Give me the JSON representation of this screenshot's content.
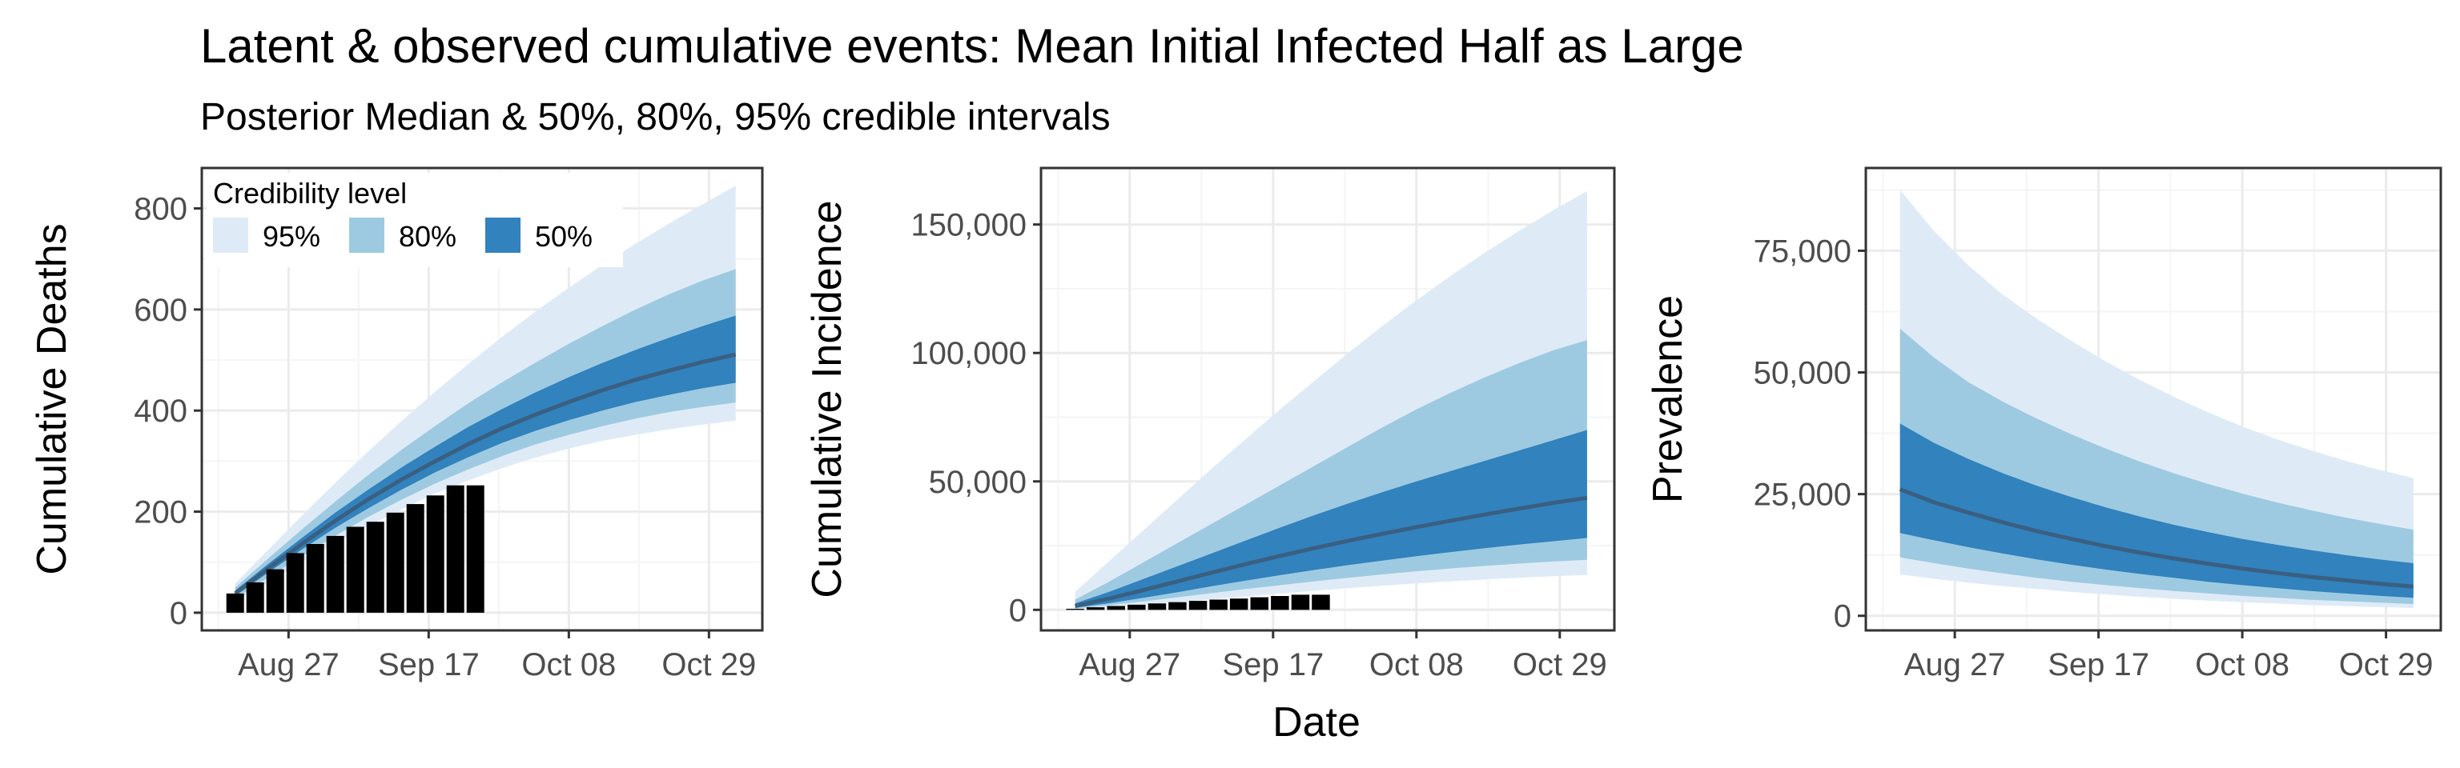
{
  "title": "Latent & observed cumulative events: Mean Initial Infected Half as Large",
  "subtitle": "Posterior Median & 50%, 80%, 95% credible intervals",
  "xlabel": "Date",
  "colors": {
    "band95": "#deebf7",
    "band80": "#9ecae1",
    "band50": "#3182bd",
    "median": "#3a5f80",
    "bars": "#000000",
    "grid_major": "#ebebeb",
    "grid_minor": "#f5f5f5",
    "panel_border": "#333333"
  },
  "legend": {
    "title": "Credibility level",
    "items": [
      {
        "label": "95%",
        "color": "#deebf7"
      },
      {
        "label": "80%",
        "color": "#9ecae1"
      },
      {
        "label": "50%",
        "color": "#3182bd"
      }
    ]
  },
  "chart_data": [
    {
      "type": "area",
      "ylabel": "Cumulative Deaths",
      "x_ticks": [
        "Aug 27",
        "Sep 17",
        "Oct 08",
        "Oct 29"
      ],
      "xlim": [
        "2020-08-14",
        "2020-11-06"
      ],
      "y_ticks": [
        "0",
        "200",
        "400",
        "600",
        "800"
      ],
      "y_tick_values": [
        0,
        200,
        400,
        600,
        800
      ],
      "ylim": [
        -35,
        880
      ],
      "dates": [
        "2020-08-19",
        "2020-08-24",
        "2020-08-29",
        "2020-09-03",
        "2020-09-08",
        "2020-09-13",
        "2020-09-18",
        "2020-09-23",
        "2020-09-28",
        "2020-10-03",
        "2020-10-08",
        "2020-10-13",
        "2020-10-18",
        "2020-10-23",
        "2020-10-28",
        "2020-11-02"
      ],
      "lo95": [
        22,
        60,
        100,
        138,
        172,
        205,
        236,
        262,
        286,
        307,
        325,
        340,
        352,
        363,
        372,
        380
      ],
      "lo80": [
        28,
        70,
        112,
        152,
        190,
        224,
        256,
        284,
        310,
        333,
        352,
        369,
        384,
        397,
        407,
        416
      ],
      "lo50": [
        33,
        80,
        125,
        168,
        207,
        244,
        278,
        308,
        336,
        360,
        381,
        400,
        417,
        431,
        444,
        455
      ],
      "median": [
        38,
        88,
        136,
        182,
        225,
        264,
        300,
        334,
        365,
        392,
        417,
        440,
        461,
        479,
        496,
        511
      ],
      "hi50": [
        44,
        97,
        148,
        198,
        244,
        288,
        329,
        368,
        403,
        436,
        466,
        494,
        520,
        544,
        567,
        588
      ],
      "hi80": [
        50,
        108,
        165,
        220,
        273,
        323,
        370,
        415,
        456,
        495,
        532,
        567,
        600,
        630,
        657,
        680
      ],
      "hi95": [
        58,
        125,
        192,
        257,
        320,
        380,
        438,
        493,
        546,
        596,
        643,
        688,
        730,
        770,
        808,
        845
      ],
      "bar_dates": [
        "2020-08-19",
        "2020-08-22",
        "2020-08-25",
        "2020-08-28",
        "2020-08-31",
        "2020-09-03",
        "2020-09-06",
        "2020-09-09",
        "2020-09-12",
        "2020-09-15",
        "2020-09-18",
        "2020-09-21",
        "2020-09-24"
      ],
      "bar_values": [
        38,
        60,
        86,
        118,
        136,
        152,
        170,
        180,
        198,
        215,
        232,
        252,
        252
      ]
    },
    {
      "type": "area",
      "ylabel": "Cumulative Incidence",
      "x_ticks": [
        "Aug 27",
        "Sep 17",
        "Oct 08",
        "Oct 29"
      ],
      "xlim": [
        "2020-08-14",
        "2020-11-06"
      ],
      "y_ticks": [
        "0",
        "50,000",
        "100,000",
        "150,000"
      ],
      "y_tick_values": [
        0,
        50000,
        100000,
        150000
      ],
      "ylim": [
        -8000,
        172000
      ],
      "dates": [
        "2020-08-19",
        "2020-08-24",
        "2020-08-29",
        "2020-09-03",
        "2020-09-08",
        "2020-09-13",
        "2020-09-18",
        "2020-09-23",
        "2020-09-28",
        "2020-10-03",
        "2020-10-08",
        "2020-10-13",
        "2020-10-18",
        "2020-10-23",
        "2020-10-28",
        "2020-11-02"
      ],
      "lo95": [
        300,
        1100,
        2000,
        3000,
        4100,
        5200,
        6300,
        7400,
        8400,
        9400,
        10300,
        11100,
        11800,
        12500,
        13100,
        13600
      ],
      "lo80": [
        500,
        1800,
        3300,
        4900,
        6500,
        8100,
        9600,
        11100,
        12500,
        13800,
        15000,
        16100,
        17100,
        18000,
        18800,
        19500
      ],
      "lo50": [
        800,
        2600,
        4700,
        6900,
        9200,
        11400,
        13500,
        15500,
        17400,
        19200,
        20900,
        22500,
        24000,
        25400,
        26700,
        28000
      ],
      "median": [
        1500,
        4400,
        7700,
        11100,
        14500,
        17800,
        21000,
        24000,
        26900,
        29600,
        32200,
        34700,
        37100,
        39400,
        41600,
        43600
      ],
      "hi50": [
        2500,
        7000,
        12000,
        17000,
        22000,
        27000,
        32000,
        36800,
        41400,
        45800,
        50000,
        54000,
        58000,
        62000,
        66000,
        70000
      ],
      "hi80": [
        4000,
        11000,
        18500,
        26000,
        33500,
        41000,
        48500,
        56000,
        63500,
        71000,
        78000,
        84500,
        90500,
        96000,
        101000,
        105000
      ],
      "hi95": [
        7000,
        19000,
        31000,
        43000,
        55000,
        66500,
        78000,
        89000,
        100000,
        110500,
        120500,
        130000,
        139000,
        147500,
        155500,
        163000
      ],
      "bar_dates": [
        "2020-08-19",
        "2020-08-22",
        "2020-08-25",
        "2020-08-28",
        "2020-08-31",
        "2020-09-03",
        "2020-09-06",
        "2020-09-09",
        "2020-09-12",
        "2020-09-15",
        "2020-09-18",
        "2020-09-21",
        "2020-09-24"
      ],
      "bar_values": [
        400,
        1000,
        1500,
        2000,
        2500,
        3000,
        3500,
        4000,
        4400,
        4900,
        5400,
        5900,
        5900
      ]
    },
    {
      "type": "area",
      "ylabel": "Prevalence",
      "x_ticks": [
        "Aug 27",
        "Sep 17",
        "Oct 08",
        "Oct 29"
      ],
      "xlim": [
        "2020-08-14",
        "2020-11-06"
      ],
      "y_ticks": [
        "0",
        "25,000",
        "50,000",
        "75,000"
      ],
      "y_tick_values": [
        0,
        25000,
        50000,
        75000
      ],
      "ylim": [
        -3000,
        92000
      ],
      "dates": [
        "2020-08-19",
        "2020-08-24",
        "2020-08-29",
        "2020-09-03",
        "2020-09-08",
        "2020-09-13",
        "2020-09-18",
        "2020-09-23",
        "2020-09-28",
        "2020-10-03",
        "2020-10-08",
        "2020-10-13",
        "2020-10-18",
        "2020-10-23",
        "2020-10-28",
        "2020-11-02"
      ],
      "lo95": [
        8500,
        7600,
        6800,
        6100,
        5500,
        4900,
        4400,
        3900,
        3500,
        3100,
        2800,
        2500,
        2200,
        2000,
        1800,
        1600
      ],
      "lo80": [
        12000,
        10800,
        9700,
        8700,
        7800,
        7000,
        6300,
        5700,
        5100,
        4600,
        4100,
        3700,
        3300,
        3000,
        2700,
        2400
      ],
      "lo50": [
        17000,
        15500,
        14100,
        12800,
        11600,
        10500,
        9500,
        8600,
        7800,
        7000,
        6300,
        5700,
        5100,
        4600,
        4100,
        3700
      ],
      "median": [
        26000,
        23300,
        21200,
        19200,
        17400,
        15800,
        14300,
        13000,
        11800,
        10700,
        9700,
        8800,
        8000,
        7300,
        6600,
        6000
      ],
      "hi50": [
        39500,
        35500,
        32200,
        29300,
        26700,
        24400,
        22300,
        20400,
        18700,
        17200,
        15800,
        14600,
        13500,
        12500,
        11600,
        10800
      ],
      "hi80": [
        59000,
        53000,
        48000,
        44000,
        40500,
        37300,
        34400,
        31700,
        29300,
        27100,
        25100,
        23300,
        21700,
        20200,
        18900,
        17700
      ],
      "hi95": [
        87500,
        79000,
        72000,
        66000,
        61000,
        56500,
        52300,
        48500,
        45000,
        41800,
        38900,
        36300,
        34000,
        31900,
        30000,
        28300
      ],
      "bar_dates": [],
      "bar_values": []
    }
  ]
}
